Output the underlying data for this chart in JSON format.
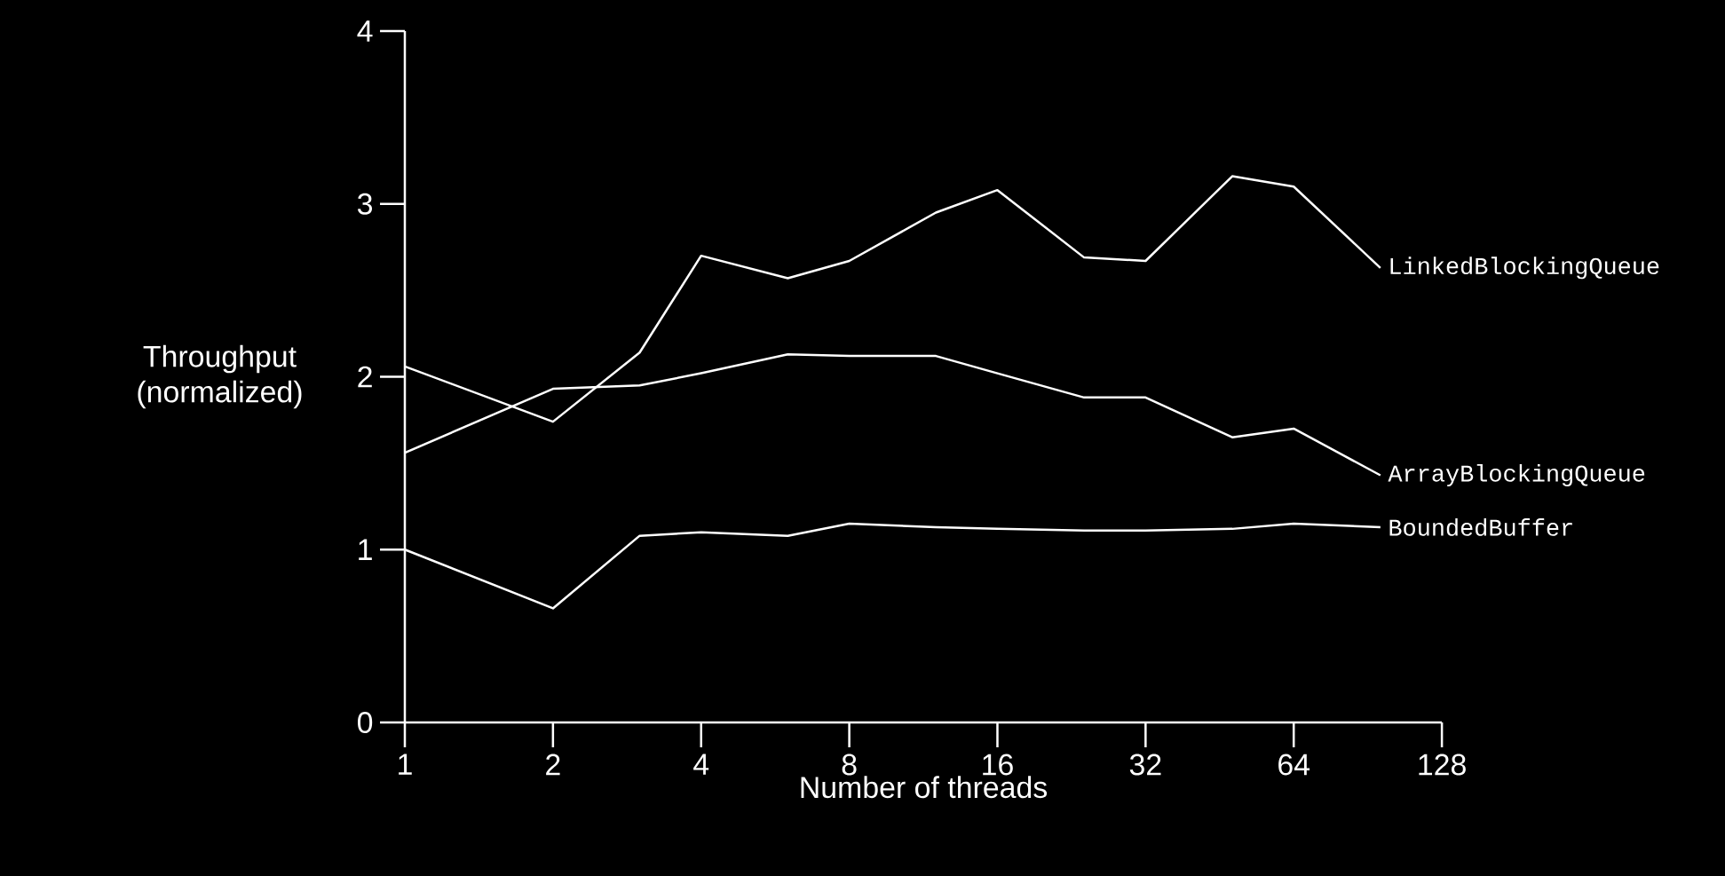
{
  "chart_data": {
    "type": "line",
    "xlabel": "Number of threads",
    "ylabel": "Throughput (normalized)",
    "x": [
      1,
      2,
      3,
      4,
      6,
      8,
      12,
      16,
      24,
      32,
      48,
      64,
      96
    ],
    "series": [
      {
        "name": "LinkedBlockingQueue",
        "color": "#ffffff",
        "values": [
          2.06,
          1.74,
          2.14,
          2.7,
          2.57,
          2.67,
          2.95,
          3.08,
          2.69,
          2.67,
          3.16,
          3.1,
          2.63
        ]
      },
      {
        "name": "ArrayBlockingQueue",
        "color": "#ffffff",
        "values": [
          1.56,
          1.93,
          1.95,
          2.02,
          2.13,
          2.12,
          2.12,
          2.02,
          1.88,
          1.88,
          1.65,
          1.7,
          1.43
        ]
      },
      {
        "name": "BoundedBuffer",
        "color": "#ffffff",
        "values": [
          1.0,
          0.66,
          1.08,
          1.1,
          1.08,
          1.15,
          1.13,
          1.12,
          1.11,
          1.11,
          1.12,
          1.15,
          1.13
        ]
      }
    ],
    "log": "x",
    "xlim": [
      1,
      128
    ],
    "xticks": [
      1,
      2,
      4,
      8,
      16,
      32,
      64,
      128
    ],
    "ylim": [
      0,
      4
    ],
    "yticks": [
      0,
      1,
      2,
      3,
      4
    ],
    "grid": false,
    "legend": false
  }
}
